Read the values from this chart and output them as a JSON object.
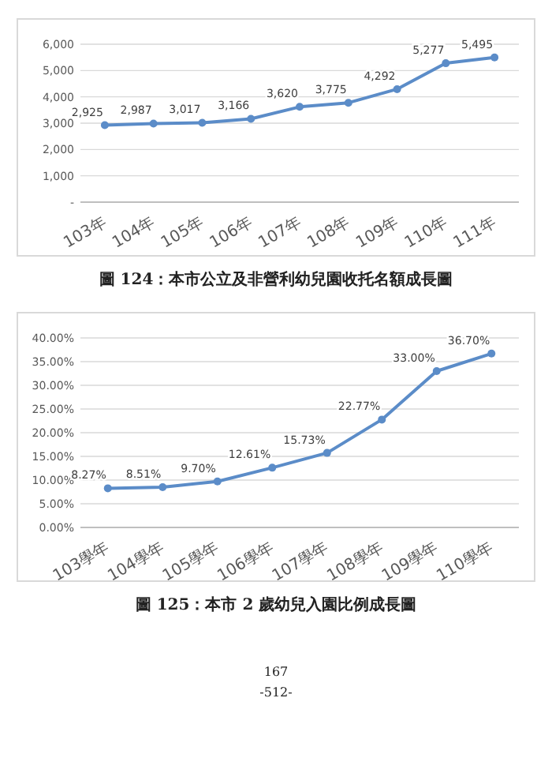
{
  "chart_data": [
    {
      "type": "line",
      "title": "圖 124：本市公立及非營利幼兒園收托名額成長圖",
      "categories": [
        "103年",
        "104年",
        "105年",
        "106年",
        "107年",
        "108年",
        "109年",
        "110年",
        "111年"
      ],
      "series": [
        {
          "color": "#5b8cc8",
          "values": [
            2925,
            2987,
            3017,
            3166,
            3620,
            3775,
            4292,
            5277,
            5495
          ],
          "value_labels": [
            "2,925",
            "2,987",
            "3,017",
            "3,166",
            "3,620",
            "3,775",
            "4,292",
            "5,277",
            "5,495"
          ]
        }
      ],
      "ylim": [
        0,
        6000
      ],
      "yticks": [
        {
          "value": 0,
          "label": "-"
        },
        {
          "value": 1000,
          "label": "1,000"
        },
        {
          "value": 2000,
          "label": "2,000"
        },
        {
          "value": 3000,
          "label": "3,000"
        },
        {
          "value": 4000,
          "label": "4,000"
        },
        {
          "value": 5000,
          "label": "5,000"
        },
        {
          "value": 6000,
          "label": "6,000"
        }
      ],
      "grid": "y",
      "marker": "circle",
      "line_style": "solid"
    },
    {
      "type": "line",
      "title": "圖 125：本市 2 歲幼兒入園比例成長圖",
      "categories": [
        "103學年",
        "104學年",
        "105學年",
        "106學年",
        "107學年",
        "108學年",
        "109學年",
        "110學年"
      ],
      "series": [
        {
          "color": "#5b8cc8",
          "values": [
            8.27,
            8.51,
            9.7,
            12.61,
            15.73,
            22.77,
            33.0,
            36.7
          ],
          "value_labels": [
            "8.27%",
            "8.51%",
            "9.70%",
            "12.61%",
            "15.73%",
            "22.77%",
            "33.00%",
            "36.70%"
          ]
        }
      ],
      "ylim": [
        0,
        40
      ],
      "yticks": [
        {
          "value": 0,
          "label": "0.00%"
        },
        {
          "value": 5,
          "label": "5.00%"
        },
        {
          "value": 10,
          "label": "10.00%"
        },
        {
          "value": 15,
          "label": "15.00%"
        },
        {
          "value": 20,
          "label": "20.00%"
        },
        {
          "value": 25,
          "label": "25.00%"
        },
        {
          "value": 30,
          "label": "30.00%"
        },
        {
          "value": 35,
          "label": "35.00%"
        },
        {
          "value": 40,
          "label": "40.00%"
        }
      ],
      "grid": "y",
      "marker": "circle",
      "line_style": "solid",
      "annotations": [
        "167",
        "-512-"
      ]
    }
  ]
}
